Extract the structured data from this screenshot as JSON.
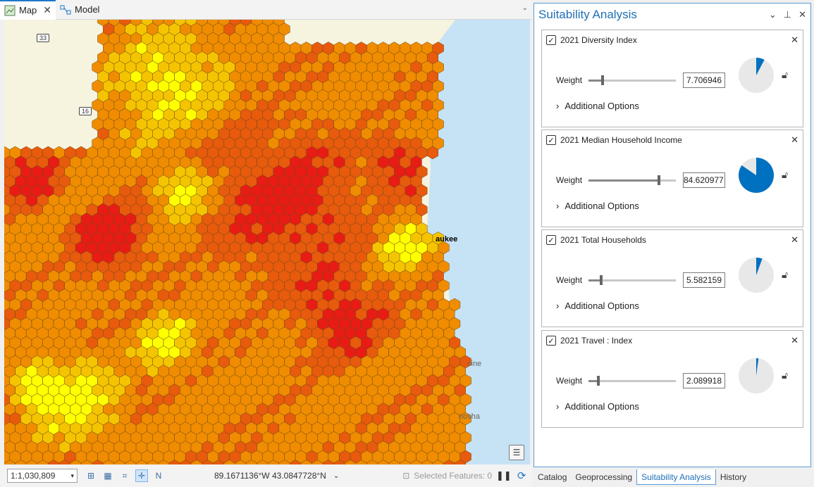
{
  "tabs": [
    {
      "label": "Map",
      "icon": "map-icon",
      "active": true
    },
    {
      "label": "Model",
      "icon": "model-icon",
      "active": false
    }
  ],
  "map": {
    "labels": {
      "city1": "aukee",
      "city2": "cine",
      "city3": "nosha",
      "route33": "33",
      "route16": "16"
    }
  },
  "statusbar": {
    "scale": "1:1,030,809",
    "coordinates": "89.1671136°W 43.0847728°N",
    "selected_features": "Selected Features: 0"
  },
  "panel": {
    "title": "Suitability Analysis",
    "criteria": [
      {
        "name": "2021 Diversity Index",
        "weight_label": "Weight",
        "weight": "7.706946",
        "weight_fraction": 0.077,
        "options_label": "Additional Options"
      },
      {
        "name": "2021 Median Household Income",
        "weight_label": "Weight",
        "weight": "84.620977",
        "weight_fraction": 0.846,
        "options_label": "Additional Options"
      },
      {
        "name": "2021 Total Households",
        "weight_label": "Weight",
        "weight": "5.582159",
        "weight_fraction": 0.056,
        "options_label": "Additional Options"
      },
      {
        "name": "2021 Travel : Index",
        "weight_label": "Weight",
        "weight": "2.089918",
        "weight_fraction": 0.021,
        "options_label": "Additional Options"
      }
    ]
  },
  "bottom_tabs": [
    {
      "label": "Catalog",
      "active": false
    },
    {
      "label": "Geoprocessing",
      "active": false
    },
    {
      "label": "Suitability Analysis",
      "active": true
    },
    {
      "label": "History",
      "active": false
    }
  ],
  "colors": {
    "accent": "#1f6fb5",
    "pie_fill": "#0070c0",
    "pie_bg": "#e8e8e8",
    "hex_red": "#e81c14",
    "hex_orange": "#f08c00",
    "hex_yellow": "#ffff00"
  }
}
